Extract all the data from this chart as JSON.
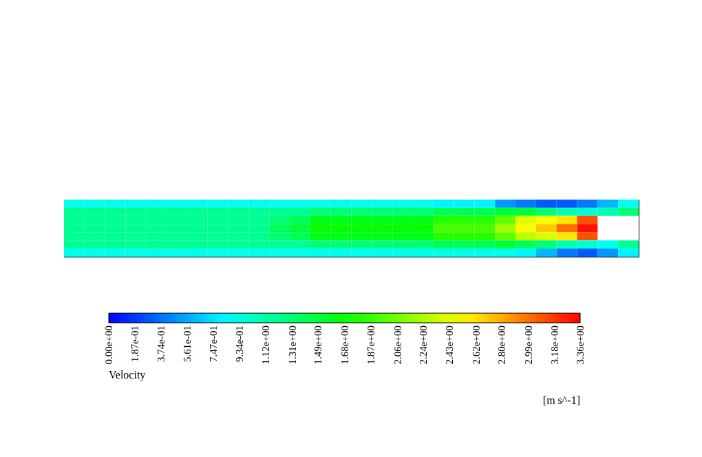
{
  "chart_data": {
    "type": "heatmap",
    "clabel": "Velocity",
    "annotations": [
      "[m s^-1]"
    ],
    "categories": [
      null,
      null,
      null,
      null,
      null,
      null,
      null,
      null,
      null,
      null,
      null,
      null,
      null,
      null,
      null,
      null,
      null,
      null,
      null,
      null,
      null,
      null,
      null,
      null,
      null,
      null,
      null,
      null
    ],
    "y_categories": [
      null,
      null,
      null,
      null,
      null,
      null,
      null
    ],
    "cells": [
      [
        0.9,
        0.9,
        0.9,
        0.9,
        0.9,
        0.9,
        0.9,
        0.9,
        0.9,
        0.9,
        0.9,
        0.9,
        0.9,
        0.9,
        0.9,
        0.9,
        0.9,
        0.9,
        0.8,
        0.8,
        0.8,
        0.5,
        0.4,
        0.3,
        0.3,
        0.4,
        0.6,
        0.9
      ],
      [
        1.2,
        1.2,
        1.2,
        1.2,
        1.2,
        1.2,
        1.2,
        1.2,
        1.2,
        1.2,
        1.2,
        1.2,
        1.3,
        1.3,
        1.3,
        1.3,
        1.3,
        1.3,
        1.4,
        1.4,
        1.4,
        1.5,
        1.5,
        1.3,
        1.1,
        1.0,
        1.1,
        1.3
      ],
      [
        1.2,
        1.2,
        1.2,
        1.2,
        1.2,
        1.2,
        1.2,
        1.2,
        1.2,
        1.2,
        1.3,
        1.4,
        1.6,
        1.6,
        1.6,
        1.6,
        1.6,
        1.6,
        1.8,
        1.8,
        1.8,
        2.0,
        2.4,
        2.5,
        2.6,
        3.1,
        null,
        null
      ],
      [
        1.2,
        1.2,
        1.2,
        1.2,
        1.2,
        1.2,
        1.2,
        1.2,
        1.2,
        1.2,
        1.4,
        1.5,
        1.7,
        1.7,
        1.7,
        1.7,
        1.7,
        1.7,
        1.9,
        1.9,
        1.9,
        2.2,
        2.5,
        2.7,
        3.0,
        3.3,
        null,
        null
      ],
      [
        1.2,
        1.2,
        1.2,
        1.2,
        1.2,
        1.2,
        1.2,
        1.2,
        1.2,
        1.2,
        1.3,
        1.4,
        1.6,
        1.6,
        1.6,
        1.6,
        1.6,
        1.6,
        1.8,
        1.8,
        1.8,
        2.0,
        2.3,
        2.4,
        2.6,
        3.1,
        null,
        null
      ],
      [
        1.2,
        1.2,
        1.2,
        1.2,
        1.2,
        1.2,
        1.2,
        1.2,
        1.2,
        1.2,
        1.2,
        1.2,
        1.3,
        1.3,
        1.3,
        1.3,
        1.3,
        1.3,
        1.4,
        1.4,
        1.4,
        1.5,
        1.4,
        1.3,
        1.1,
        1.0,
        0.9,
        1.2
      ],
      [
        0.9,
        0.9,
        0.9,
        0.9,
        0.9,
        0.9,
        0.9,
        0.9,
        0.9,
        0.9,
        0.9,
        0.9,
        0.9,
        0.9,
        0.9,
        0.9,
        0.9,
        0.9,
        0.9,
        0.9,
        0.9,
        0.9,
        0.8,
        0.6,
        0.4,
        0.3,
        0.5,
        0.8
      ]
    ],
    "clim": [
      0,
      3.36
    ],
    "cticks": [
      {
        "value": 0,
        "label": "0.00e+00"
      },
      {
        "value": 0.187,
        "label": "1.87e-01"
      },
      {
        "value": 0.374,
        "label": "3.74e-01"
      },
      {
        "value": 0.561,
        "label": "5.61e-01"
      },
      {
        "value": 0.747,
        "label": "7.47e-01"
      },
      {
        "value": 0.934,
        "label": "9.34e-01"
      },
      {
        "value": 1.12,
        "label": "1.12e+00"
      },
      {
        "value": 1.31,
        "label": "1.31e+00"
      },
      {
        "value": 1.49,
        "label": "1.49e+00"
      },
      {
        "value": 1.68,
        "label": "1.68e+00"
      },
      {
        "value": 1.87,
        "label": "1.87e+00"
      },
      {
        "value": 2.06,
        "label": "2.06e+00"
      },
      {
        "value": 2.24,
        "label": "2.24e+00"
      },
      {
        "value": 2.43,
        "label": "2.43e+00"
      },
      {
        "value": 2.62,
        "label": "2.62e+00"
      },
      {
        "value": 2.8,
        "label": "2.80e+00"
      },
      {
        "value": 2.99,
        "label": "2.99e+00"
      },
      {
        "value": 3.18,
        "label": "3.18e+00"
      },
      {
        "value": 3.36,
        "label": "3.36e+00"
      }
    ]
  }
}
